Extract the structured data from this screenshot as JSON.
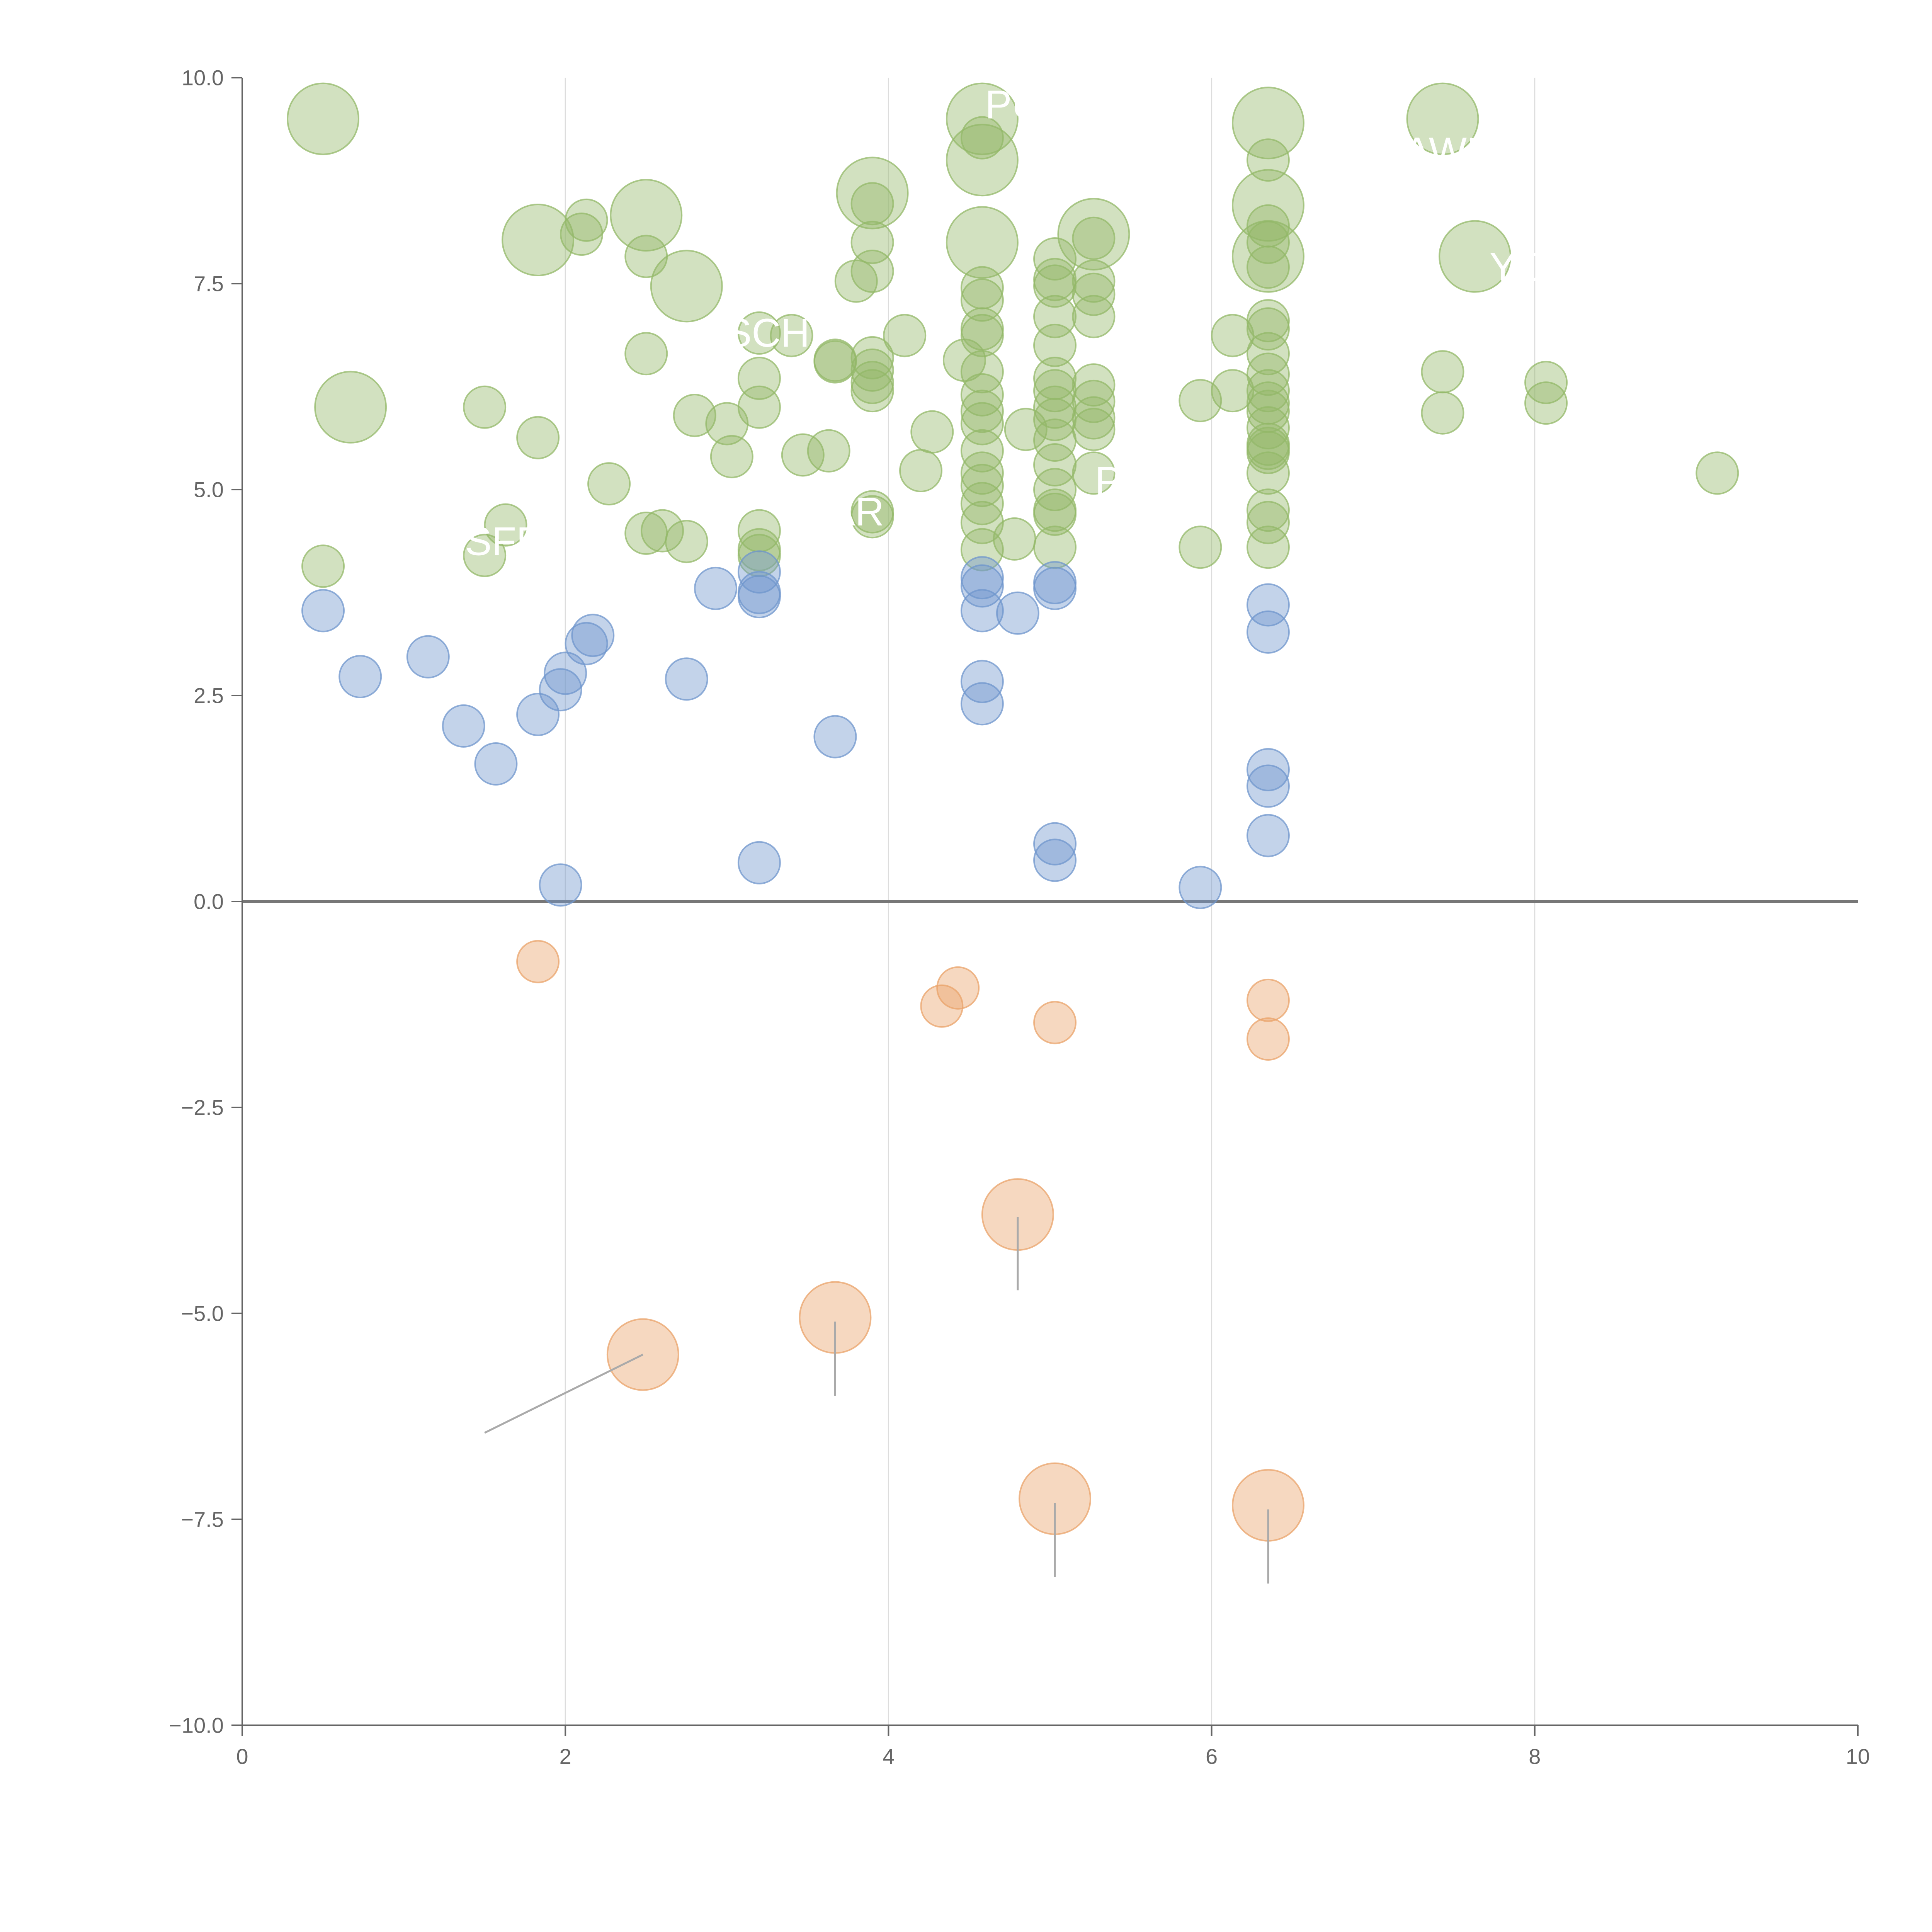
{
  "chart_data": {
    "type": "scatter",
    "subtype": "bubble",
    "title": "",
    "xlabel": "",
    "ylabel": "",
    "xlim": [
      0,
      10
    ],
    "ylim": [
      -10,
      10
    ],
    "x_ticks": [
      0,
      2,
      4,
      6,
      8,
      10
    ],
    "x_tick_labels": [
      "0",
      "2",
      "4",
      "6",
      "8",
      "10"
    ],
    "y_ticks": [
      10,
      7.5,
      5,
      2.5,
      0,
      -2.5,
      -5,
      -7.5,
      -10
    ],
    "y_tick_labels": [
      "10.0",
      "7.5",
      "5.0",
      "2.5",
      "0.0",
      "−2.5",
      "−5.0",
      "−7.5",
      "−10.0"
    ],
    "vertical_gridlines": [
      2,
      4,
      6,
      8
    ],
    "zero_line": 0,
    "colors": {
      "green": "#93b868",
      "blue": "#6f96cc",
      "orange": "#e9a36a",
      "axis": "#666666",
      "grid": "#dddddd",
      "zero_line": "#777777",
      "connector": "#aaaaaa",
      "label": "#ffffff"
    },
    "series": [
      {
        "name": "green",
        "color": "#93b868",
        "points": [
          [
            0.5,
            9.5,
            3
          ],
          [
            0.67,
            6.0,
            3
          ],
          [
            1.83,
            8.03,
            3
          ],
          [
            2.5,
            8.33,
            3
          ],
          [
            2.75,
            7.47,
            3
          ],
          [
            3.9,
            8.6,
            3
          ],
          [
            4.58,
            9.5,
            3
          ],
          [
            4.58,
            9.0,
            3
          ],
          [
            4.58,
            8.0,
            3
          ],
          [
            5.27,
            8.1,
            3
          ],
          [
            6.35,
            9.45,
            3
          ],
          [
            6.35,
            8.45,
            3
          ],
          [
            6.35,
            7.83,
            3
          ],
          [
            7.43,
            9.5,
            3
          ],
          [
            7.63,
            7.83,
            3
          ],
          [
            0.5,
            4.07,
            1
          ],
          [
            1.5,
            6.0,
            1
          ],
          [
            1.5,
            4.2,
            1
          ],
          [
            1.63,
            4.57,
            1
          ],
          [
            1.83,
            5.63,
            1
          ],
          [
            2.1,
            8.1,
            1
          ],
          [
            2.13,
            8.27,
            1
          ],
          [
            2.27,
            5.07,
            1
          ],
          [
            2.5,
            6.65,
            1
          ],
          [
            2.5,
            7.83,
            1
          ],
          [
            2.5,
            4.47,
            1
          ],
          [
            2.6,
            4.5,
            1
          ],
          [
            2.75,
            4.37,
            1
          ],
          [
            2.8,
            5.9,
            1
          ],
          [
            3.0,
            5.8,
            1
          ],
          [
            3.03,
            5.4,
            1
          ],
          [
            3.2,
            6.9,
            1
          ],
          [
            3.2,
            6.35,
            1
          ],
          [
            3.2,
            6.0,
            1
          ],
          [
            3.2,
            4.5,
            1
          ],
          [
            3.2,
            4.27,
            1
          ],
          [
            3.2,
            4.2,
            1
          ],
          [
            3.4,
            6.87,
            1
          ],
          [
            3.47,
            5.42,
            1
          ],
          [
            3.63,
            5.47,
            1
          ],
          [
            3.67,
            6.57,
            1
          ],
          [
            3.67,
            6.55,
            1
          ],
          [
            3.8,
            7.53,
            1
          ],
          [
            3.9,
            8.47,
            1
          ],
          [
            3.9,
            8.0,
            1
          ],
          [
            3.9,
            7.65,
            1
          ],
          [
            3.9,
            6.6,
            1
          ],
          [
            3.9,
            6.45,
            1
          ],
          [
            3.9,
            6.3,
            1
          ],
          [
            3.9,
            6.2,
            1
          ],
          [
            3.9,
            4.73,
            1
          ],
          [
            3.9,
            4.67,
            1
          ],
          [
            4.1,
            6.87,
            1
          ],
          [
            4.2,
            5.23,
            1
          ],
          [
            4.27,
            5.7,
            1
          ],
          [
            4.47,
            6.57,
            1
          ],
          [
            4.58,
            9.27,
            1
          ],
          [
            4.58,
            7.45,
            1
          ],
          [
            4.58,
            7.3,
            1
          ],
          [
            4.58,
            6.95,
            1
          ],
          [
            4.58,
            6.87,
            1
          ],
          [
            4.58,
            6.43,
            1
          ],
          [
            4.58,
            6.15,
            1
          ],
          [
            4.58,
            5.95,
            1
          ],
          [
            4.58,
            5.8,
            1
          ],
          [
            4.58,
            5.47,
            1
          ],
          [
            4.58,
            5.2,
            1
          ],
          [
            4.58,
            5.05,
            1
          ],
          [
            4.58,
            4.83,
            1
          ],
          [
            4.58,
            4.6,
            1
          ],
          [
            4.58,
            4.27,
            1
          ],
          [
            4.78,
            4.4,
            1
          ],
          [
            4.85,
            5.73,
            1
          ],
          [
            5.03,
            7.8,
            1
          ],
          [
            5.03,
            7.55,
            1
          ],
          [
            5.03,
            7.47,
            1
          ],
          [
            5.03,
            7.1,
            1
          ],
          [
            5.03,
            6.75,
            1
          ],
          [
            5.03,
            6.35,
            1
          ],
          [
            5.03,
            6.2,
            1
          ],
          [
            5.03,
            6.0,
            1
          ],
          [
            5.03,
            5.85,
            1
          ],
          [
            5.03,
            5.6,
            1
          ],
          [
            5.03,
            5.3,
            1
          ],
          [
            5.03,
            5.0,
            1
          ],
          [
            5.03,
            4.75,
            1
          ],
          [
            5.03,
            4.7,
            1
          ],
          [
            5.03,
            4.3,
            1
          ],
          [
            5.27,
            8.05,
            1
          ],
          [
            5.27,
            7.53,
            1
          ],
          [
            5.27,
            7.37,
            1
          ],
          [
            5.27,
            7.1,
            1
          ],
          [
            5.27,
            6.27,
            1
          ],
          [
            5.27,
            6.07,
            1
          ],
          [
            5.27,
            5.87,
            1
          ],
          [
            5.27,
            5.73,
            1
          ],
          [
            5.27,
            5.2,
            1
          ],
          [
            5.93,
            6.08,
            1
          ],
          [
            5.93,
            4.3,
            1
          ],
          [
            6.13,
            6.87,
            1
          ],
          [
            6.13,
            6.2,
            1
          ],
          [
            6.35,
            9.0,
            1
          ],
          [
            6.35,
            8.2,
            1
          ],
          [
            6.35,
            8.0,
            1
          ],
          [
            6.35,
            7.7,
            1
          ],
          [
            6.35,
            7.05,
            1
          ],
          [
            6.35,
            6.95,
            1
          ],
          [
            6.35,
            6.65,
            1
          ],
          [
            6.35,
            6.4,
            1
          ],
          [
            6.35,
            6.2,
            1
          ],
          [
            6.35,
            6.05,
            1
          ],
          [
            6.35,
            5.95,
            1
          ],
          [
            6.35,
            5.75,
            1
          ],
          [
            6.35,
            5.55,
            1
          ],
          [
            6.35,
            5.5,
            1
          ],
          [
            6.35,
            5.45,
            1
          ],
          [
            6.35,
            5.2,
            1
          ],
          [
            6.35,
            4.75,
            1
          ],
          [
            6.35,
            4.6,
            1
          ],
          [
            6.35,
            4.3,
            1
          ],
          [
            7.43,
            6.43,
            1
          ],
          [
            7.43,
            5.93,
            1
          ],
          [
            8.07,
            6.3,
            1
          ],
          [
            8.07,
            6.05,
            1
          ],
          [
            9.13,
            5.2,
            1
          ]
        ]
      },
      {
        "name": "blue",
        "color": "#6f96cc",
        "points": [
          [
            0.5,
            3.53,
            1
          ],
          [
            0.73,
            2.73,
            1
          ],
          [
            1.15,
            2.97,
            1
          ],
          [
            1.37,
            2.13,
            1
          ],
          [
            1.57,
            1.67,
            1
          ],
          [
            1.83,
            2.27,
            1
          ],
          [
            1.97,
            2.57,
            1
          ],
          [
            1.97,
            0.2,
            1
          ],
          [
            2.0,
            2.77,
            1
          ],
          [
            2.13,
            3.13,
            1
          ],
          [
            2.17,
            3.23,
            1
          ],
          [
            2.75,
            2.7,
            1
          ],
          [
            2.93,
            3.8,
            1
          ],
          [
            3.2,
            4.0,
            1
          ],
          [
            3.2,
            3.75,
            1
          ],
          [
            3.2,
            3.7,
            1
          ],
          [
            3.2,
            0.47,
            1
          ],
          [
            3.67,
            2.0,
            1
          ],
          [
            4.58,
            3.93,
            1
          ],
          [
            4.58,
            3.83,
            1
          ],
          [
            4.58,
            3.53,
            1
          ],
          [
            4.58,
            2.67,
            1
          ],
          [
            4.58,
            2.4,
            1
          ],
          [
            4.8,
            3.5,
            1
          ],
          [
            5.03,
            3.87,
            1
          ],
          [
            5.03,
            3.8,
            1
          ],
          [
            5.03,
            0.7,
            1
          ],
          [
            5.03,
            0.5,
            1
          ],
          [
            5.93,
            0.17,
            1
          ],
          [
            6.35,
            3.6,
            1
          ],
          [
            6.35,
            3.27,
            1
          ],
          [
            6.35,
            1.6,
            1
          ],
          [
            6.35,
            1.4,
            1
          ],
          [
            6.35,
            0.8,
            1
          ]
        ]
      },
      {
        "name": "orange",
        "color": "#e9a36a",
        "points": [
          [
            1.83,
            -0.73,
            1
          ],
          [
            2.48,
            -5.5,
            3
          ],
          [
            3.67,
            -5.05,
            3
          ],
          [
            4.33,
            -1.27,
            1
          ],
          [
            4.43,
            -1.05,
            1
          ],
          [
            4.8,
            -3.8,
            3
          ],
          [
            5.03,
            -1.47,
            1
          ],
          [
            5.03,
            -7.25,
            3
          ],
          [
            6.35,
            -1.2,
            1
          ],
          [
            6.35,
            -1.67,
            1
          ],
          [
            6.35,
            -7.33,
            3
          ]
        ]
      }
    ],
    "annotations": [
      {
        "text": "PU",
        "x": 4.77,
        "y": 9.67
      },
      {
        "text": "PAWR",
        "x": 7.4,
        "y": 9.1
      },
      {
        "text": "YO",
        "x": 7.9,
        "y": 7.7
      },
      {
        "text": "SCH",
        "x": 3.25,
        "y": 6.9
      },
      {
        "text": "PL",
        "x": 5.43,
        "y": 5.1
      },
      {
        "text": "AR",
        "x": 3.8,
        "y": 4.73
      },
      {
        "text": "SFE",
        "x": 1.62,
        "y": 4.37
      }
    ],
    "connectors": [
      {
        "from": [
          2.48,
          -5.5
        ],
        "to": [
          1.5,
          -6.45
        ]
      },
      {
        "from": [
          3.67,
          -5.1
        ],
        "to": [
          3.67,
          -6.0
        ]
      },
      {
        "from": [
          4.8,
          -3.83
        ],
        "to": [
          4.8,
          -4.72
        ]
      },
      {
        "from": [
          5.03,
          -7.3
        ],
        "to": [
          5.03,
          -8.2
        ]
      },
      {
        "from": [
          6.35,
          -7.38
        ],
        "to": [
          6.35,
          -8.28
        ]
      }
    ]
  }
}
